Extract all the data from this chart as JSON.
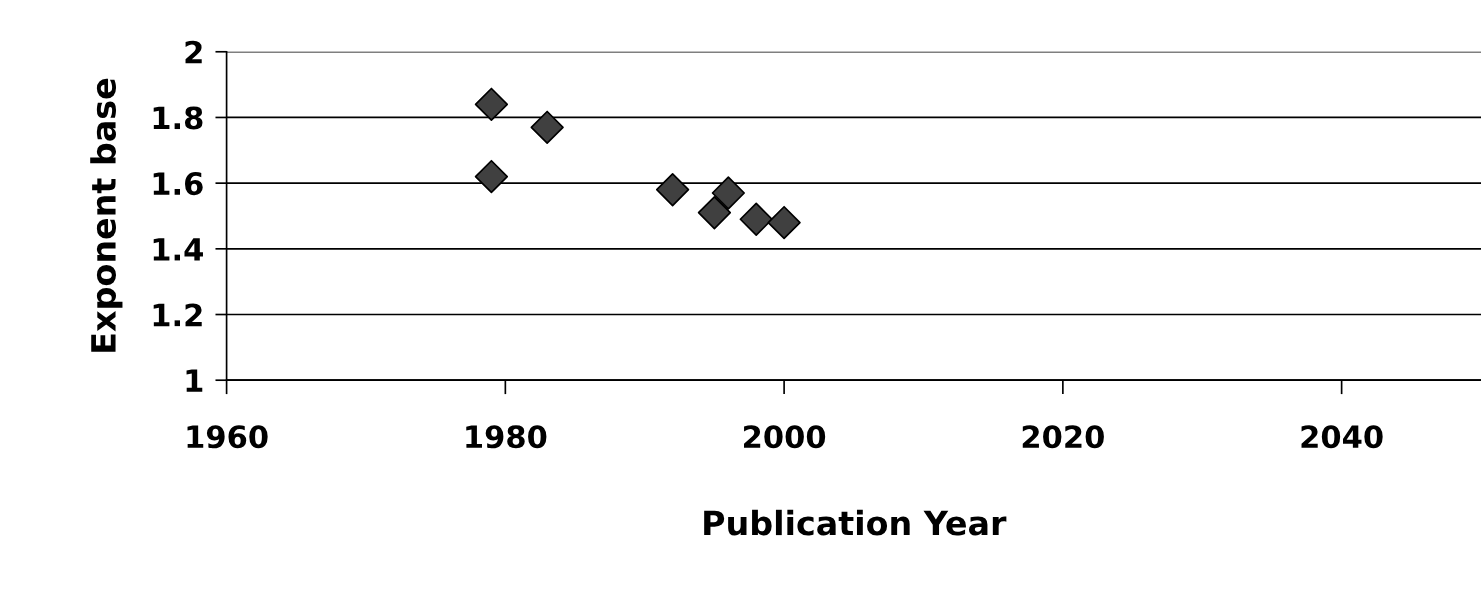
{
  "chart_data": {
    "type": "scatter",
    "xlabel": "Publication Year",
    "ylabel": "Exponent base",
    "x": [
      1979,
      1979,
      1983,
      1992,
      1995,
      1996,
      1998,
      2000
    ],
    "series": [
      {
        "color": "#404040",
        "values": [
          1.84,
          1.62,
          1.77,
          1.58,
          1.51,
          1.57,
          1.49,
          1.48
        ]
      }
    ],
    "xlim": [
      1960,
      2050
    ],
    "xticks": [
      1960,
      1980,
      2000,
      2020,
      2040
    ],
    "ylim": [
      1,
      2
    ],
    "yticks": [
      1,
      1.2,
      1.4,
      1.6,
      1.8,
      2
    ],
    "grid": "y",
    "marker": "diamond",
    "legend": false
  }
}
